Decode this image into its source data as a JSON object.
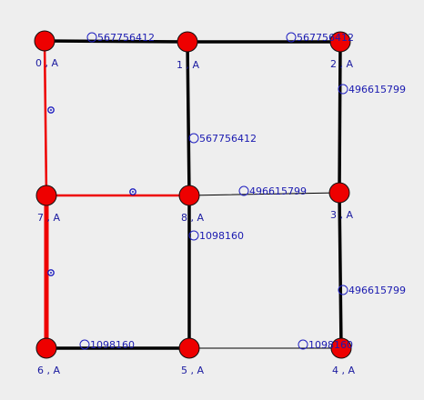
{
  "graph": {
    "colors": {
      "background": "#eeeeee",
      "node_fill": "#ee0000",
      "node_stroke": "#111111",
      "edge_black": "#000000",
      "edge_red": "#ee0000",
      "label_blue": "#1a1ab0",
      "marker_blue": "#2020c0"
    },
    "nodes": [
      {
        "id": "n0",
        "label": "0 , A",
        "color": "red"
      },
      {
        "id": "n1",
        "label": "1 , A",
        "color": "red"
      },
      {
        "id": "n2",
        "label": "2 , A",
        "color": "red"
      },
      {
        "id": "n3",
        "label": "3 , A",
        "color": "red"
      },
      {
        "id": "n4",
        "label": "4 , A",
        "color": "red"
      },
      {
        "id": "n5",
        "label": "5 , A",
        "color": "red"
      },
      {
        "id": "n6",
        "label": "6 , A",
        "color": "red"
      },
      {
        "id": "n7",
        "label": "7 , A",
        "color": "red"
      },
      {
        "id": "n8",
        "label": "8 , A",
        "color": "red"
      }
    ],
    "edges": [
      {
        "id": "e0-1",
        "from": "n0",
        "to": "n1",
        "label": "567756412",
        "weight": "heavy",
        "color": "black",
        "marker": "circled-digit"
      },
      {
        "id": "e1-2",
        "from": "n1",
        "to": "n2",
        "label": "567756412",
        "weight": "heavy",
        "color": "black",
        "marker": "circled-digit"
      },
      {
        "id": "e1-8",
        "from": "n1",
        "to": "n8",
        "label": "567756412",
        "weight": "heavy",
        "color": "black",
        "marker": "circled-digit"
      },
      {
        "id": "e2-3",
        "from": "n2",
        "to": "n3",
        "label": "496615799",
        "weight": "heavy",
        "color": "black",
        "marker": "circled-digit"
      },
      {
        "id": "e8-3",
        "from": "n8",
        "to": "n3",
        "label": "496615799",
        "weight": "thin",
        "color": "black",
        "marker": "circled-digit"
      },
      {
        "id": "e3-4",
        "from": "n3",
        "to": "n4",
        "label": "496615799",
        "weight": "heavy",
        "color": "black",
        "marker": "circled-digit"
      },
      {
        "id": "e8-5",
        "from": "n8",
        "to": "n5",
        "label": "1098160",
        "weight": "heavy",
        "color": "black",
        "marker": "circled-digit"
      },
      {
        "id": "e5-4",
        "from": "n5",
        "to": "n4",
        "label": "1098160",
        "weight": "thin",
        "color": "black",
        "marker": "circled-digit"
      },
      {
        "id": "e6-5",
        "from": "n6",
        "to": "n5",
        "label": "1098160",
        "weight": "heavy",
        "color": "black",
        "marker": "circled-digit"
      },
      {
        "id": "e0-7",
        "from": "n0",
        "to": "n7",
        "label": "",
        "weight": "medium",
        "color": "red",
        "marker": "blue-dot"
      },
      {
        "id": "e7-8",
        "from": "n7",
        "to": "n8",
        "label": "",
        "weight": "medium",
        "color": "red",
        "marker": "blue-dot"
      },
      {
        "id": "e7-6",
        "from": "n7",
        "to": "n6",
        "label": "",
        "weight": "extra-heavy",
        "color": "red",
        "marker": "blue-dot"
      }
    ]
  }
}
